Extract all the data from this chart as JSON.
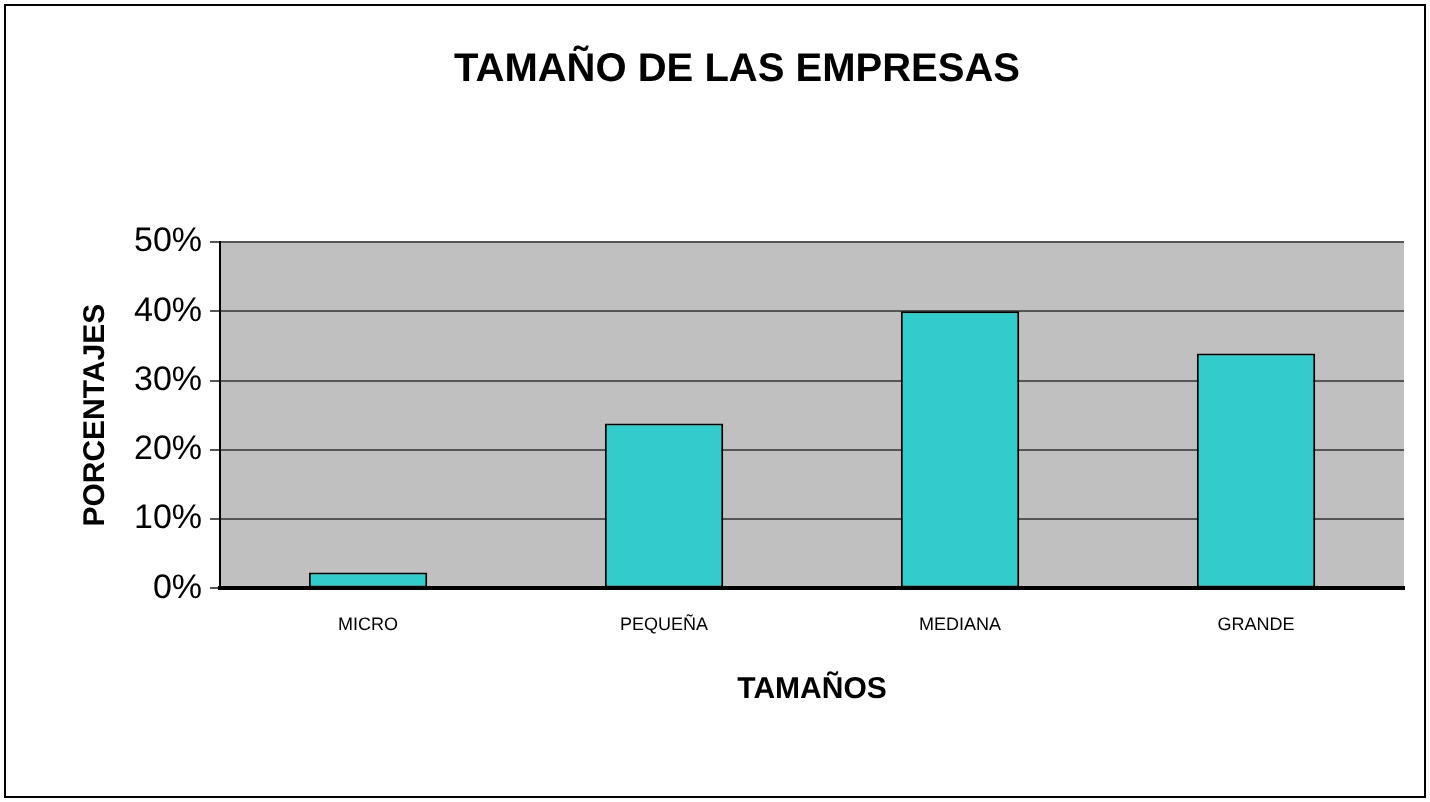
{
  "chart_data": {
    "type": "bar",
    "title": "TAMAÑO DE LAS EMPRESAS",
    "xlabel": "TAMAÑOS",
    "ylabel": "PORCENTAJES",
    "categories": [
      "MICRO",
      "PEQUEÑA",
      "MEDIANA",
      "GRANDE"
    ],
    "values": [
      2.3,
      23.8,
      40,
      33.9
    ],
    "color": "#33cccc",
    "ylim": [
      0,
      50
    ],
    "yticks": [
      {
        "value": 0,
        "label": "0%"
      },
      {
        "value": 10,
        "label": "10%"
      },
      {
        "value": 20,
        "label": "20%"
      },
      {
        "value": 30,
        "label": "30%"
      },
      {
        "value": 40,
        "label": "40%"
      },
      {
        "value": 50,
        "label": "50%"
      }
    ],
    "grid": "y",
    "legend": false
  }
}
